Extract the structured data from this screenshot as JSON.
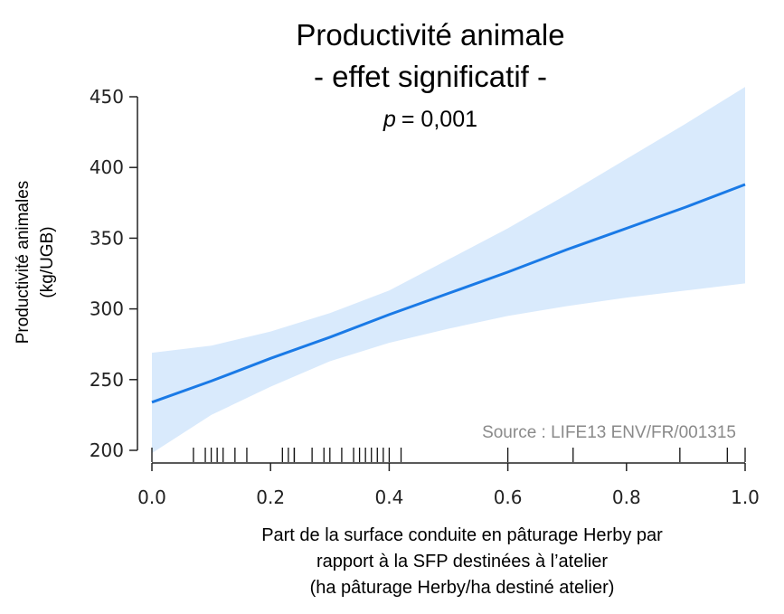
{
  "chart_data": {
    "type": "line",
    "title": "Productivité animale",
    "subtitle": "- effet significatif -",
    "annotation": {
      "p_symbol": "p",
      "p_value": "= 0,001"
    },
    "source": "Source : LIFE13 ENV/FR/001315",
    "ylabel": [
      "Productivité animales",
      "(kg/UGB)"
    ],
    "xlabel": [
      "Part de la surface conduite en pâturage Herby par",
      "rapport à la SFP destinées à l’atelier",
      "(ha pâturage Herby/ha destiné atelier)"
    ],
    "xlim": [
      0.0,
      1.0
    ],
    "ylim": [
      200,
      450
    ],
    "x_ticks": [
      "0.0",
      "0.2",
      "0.4",
      "0.6",
      "0.8",
      "1.0"
    ],
    "y_ticks": [
      "200",
      "250",
      "300",
      "350",
      "400",
      "450"
    ],
    "series": [
      {
        "x": [
          0.0,
          0.1,
          0.2,
          0.3,
          0.4,
          0.5,
          0.6,
          0.7,
          0.8,
          0.9,
          1.0
        ],
        "values": [
          234,
          249,
          265,
          280,
          296,
          311,
          326,
          342,
          357,
          372,
          388
        ],
        "lower": [
          198,
          225,
          245,
          263,
          276,
          286,
          295,
          302,
          308,
          313,
          318
        ],
        "upper": [
          269,
          274,
          284,
          297,
          313,
          335,
          357,
          381,
          406,
          431,
          457
        ]
      }
    ],
    "rug": [
      0.0,
      0.07,
      0.09,
      0.1,
      0.11,
      0.12,
      0.14,
      0.16,
      0.22,
      0.23,
      0.24,
      0.24,
      0.27,
      0.29,
      0.3,
      0.32,
      0.34,
      0.35,
      0.36,
      0.37,
      0.38,
      0.39,
      0.4,
      0.42,
      0.6,
      0.71,
      0.89,
      0.97,
      1.0
    ],
    "colors": {
      "line": "#1a7ae6",
      "band": "#d9eafc",
      "axis": "#222222"
    }
  }
}
